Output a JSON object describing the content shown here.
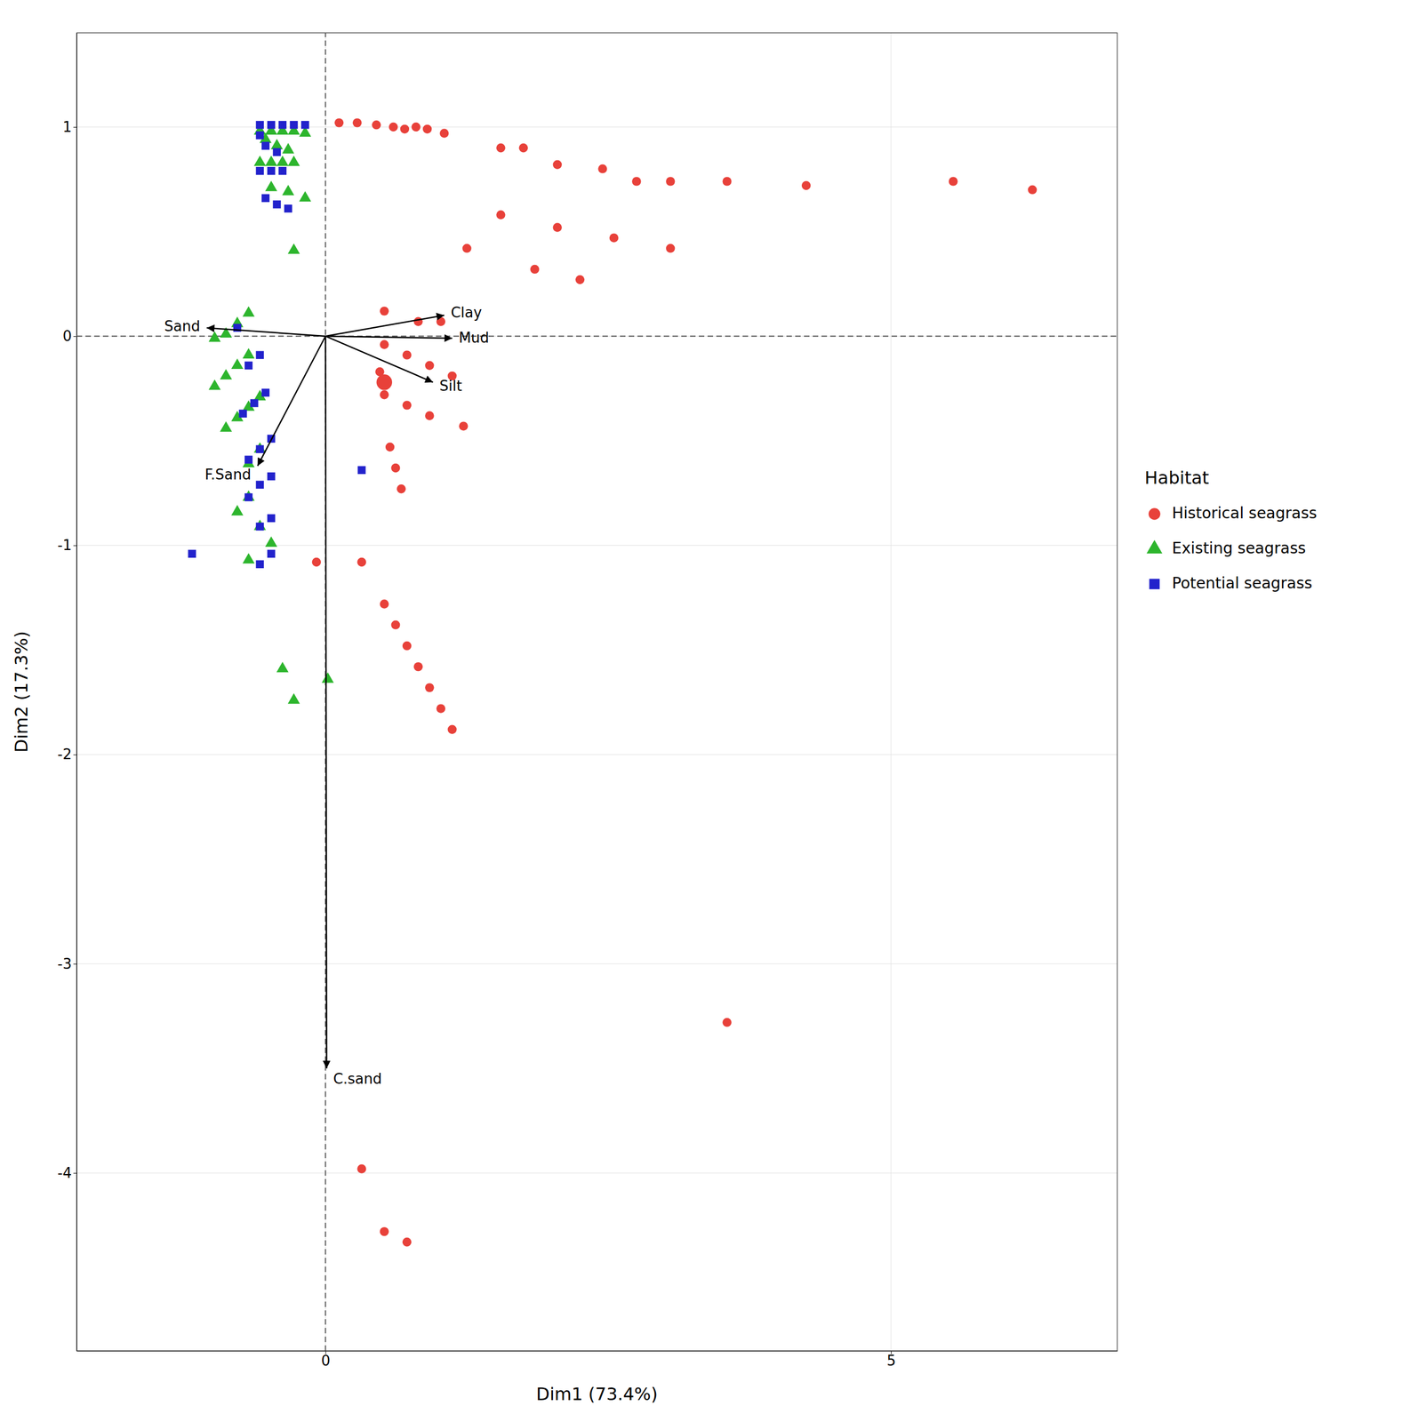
{
  "chart_data": {
    "type": "scatter",
    "xlabel": "Dim1 (73.4%)",
    "ylabel": "Dim2 (17.3%)",
    "xlim": [
      -2.2,
      7.0
    ],
    "ylim": [
      -4.85,
      1.45
    ],
    "xticks": [
      0,
      5
    ],
    "yticks": [
      -4,
      -3,
      -2,
      -1,
      0,
      1
    ],
    "grid": true,
    "legend": "right",
    "legend_title": "Habitat",
    "reference_lines": [
      {
        "axis": "y",
        "value": 0,
        "color": "#555555",
        "line_style": "dashed"
      },
      {
        "axis": "x",
        "value": 0,
        "color": "#555555",
        "line_style": "dashed"
      }
    ],
    "vectors": [
      {
        "label": "Sand",
        "x": -1.05,
        "y": 0.04,
        "color": "#000000"
      },
      {
        "label": "Clay",
        "x": 1.05,
        "y": 0.1,
        "color": "#000000"
      },
      {
        "label": "Mud",
        "x": 1.12,
        "y": -0.01,
        "color": "#000000"
      },
      {
        "label": "Silt",
        "x": 0.95,
        "y": -0.22,
        "color": "#000000"
      },
      {
        "label": "F.Sand",
        "x": -0.6,
        "y": -0.62,
        "color": "#000000"
      },
      {
        "label": "C.sand",
        "x": 0.01,
        "y": -3.5,
        "color": "#000000"
      }
    ],
    "series": [
      {
        "name": "Historical seagrass",
        "color": "#e8413a",
        "marker": "circle",
        "x": [
          0.12,
          0.28,
          0.45,
          0.6,
          0.7,
          0.8,
          0.9,
          1.05,
          1.55,
          1.75,
          2.05,
          2.45,
          2.75,
          3.05,
          3.55,
          4.25,
          5.55,
          6.25,
          1.55,
          2.05,
          2.55,
          3.05,
          1.25,
          1.85,
          2.25,
          0.52,
          0.82,
          1.02,
          0.52,
          0.72,
          0.92,
          1.12,
          0.52,
          0.72,
          0.92,
          1.22,
          0.57,
          0.62,
          0.67,
          0.32,
          0.52,
          0.62,
          0.72,
          0.82,
          0.92,
          1.02,
          1.12,
          3.55,
          0.32,
          0.52,
          0.72,
          0.48,
          -0.08
        ],
        "values": [
          1.02,
          1.02,
          1.01,
          1.0,
          0.99,
          1.0,
          0.99,
          0.97,
          0.9,
          0.9,
          0.82,
          0.8,
          0.74,
          0.74,
          0.74,
          0.72,
          0.74,
          0.7,
          0.58,
          0.52,
          0.47,
          0.42,
          0.42,
          0.32,
          0.27,
          0.12,
          0.07,
          0.07,
          -0.04,
          -0.09,
          -0.14,
          -0.19,
          -0.28,
          -0.33,
          -0.38,
          -0.43,
          -0.53,
          -0.63,
          -0.73,
          -1.08,
          -1.28,
          -1.38,
          -1.48,
          -1.58,
          -1.68,
          -1.78,
          -1.88,
          -3.28,
          -3.98,
          -4.28,
          -4.33,
          -0.17,
          -1.08
        ]
      },
      {
        "name": "Existing seagrass",
        "color": "#2db52d",
        "marker": "triangle",
        "x": [
          -0.58,
          -0.48,
          -0.38,
          -0.28,
          -0.18,
          -0.53,
          -0.43,
          -0.33,
          -0.58,
          -0.48,
          -0.38,
          -0.28,
          -0.48,
          -0.33,
          -0.18,
          -0.28,
          -0.68,
          -0.78,
          -0.88,
          -0.98,
          -0.68,
          -0.78,
          -0.88,
          -0.98,
          -0.58,
          -0.68,
          -0.78,
          -0.88,
          -0.58,
          -0.68,
          -0.68,
          -0.78,
          -0.58,
          -0.48,
          -0.68,
          -0.38,
          -0.28,
          0.02
        ],
        "values": [
          0.98,
          0.98,
          0.98,
          0.98,
          0.97,
          0.94,
          0.91,
          0.89,
          0.83,
          0.83,
          0.83,
          0.83,
          0.71,
          0.69,
          0.66,
          0.41,
          0.11,
          0.06,
          0.01,
          -0.01,
          -0.09,
          -0.14,
          -0.19,
          -0.24,
          -0.29,
          -0.34,
          -0.39,
          -0.44,
          -0.54,
          -0.61,
          -0.77,
          -0.84,
          -0.91,
          -0.99,
          -1.07,
          -1.59,
          -1.74,
          -1.64
        ]
      },
      {
        "name": "Potential seagrass",
        "color": "#2222cc",
        "marker": "square",
        "x": [
          -0.58,
          -0.48,
          -0.38,
          -0.28,
          -0.18,
          -0.58,
          -0.53,
          -0.43,
          -0.58,
          -0.48,
          -0.38,
          -0.53,
          -0.43,
          -0.33,
          -0.78,
          -0.58,
          -0.68,
          -0.53,
          -0.63,
          -0.73,
          -0.48,
          -0.58,
          -0.68,
          -0.48,
          -0.58,
          -0.68,
          -0.48,
          -0.58,
          -0.48,
          -0.58,
          0.32,
          -1.18
        ],
        "values": [
          1.01,
          1.01,
          1.01,
          1.01,
          1.01,
          0.96,
          0.91,
          0.88,
          0.79,
          0.79,
          0.79,
          0.66,
          0.63,
          0.61,
          0.04,
          -0.09,
          -0.14,
          -0.27,
          -0.32,
          -0.37,
          -0.49,
          -0.54,
          -0.59,
          -0.67,
          -0.71,
          -0.77,
          -0.87,
          -0.91,
          -1.04,
          -1.09,
          -0.64,
          -1.04
        ]
      },
      {
        "color": "#e8413a",
        "marker": "circle",
        "x": [
          0.52
        ],
        "values": [
          -0.22
        ]
      }
    ]
  }
}
